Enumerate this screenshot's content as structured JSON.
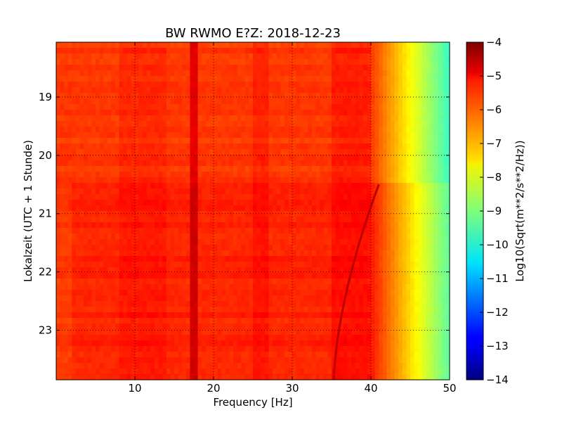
{
  "chart_data": {
    "type": "heatmap",
    "title": "BW RWMO E?Z: 2018-12-23",
    "xlabel": "Frequency [Hz]",
    "ylabel": "Lokalzeit (UTC + 1 Stunde)",
    "xlim": [
      0,
      50
    ],
    "ylim": [
      18.06,
      23.85
    ],
    "y_inverted": true,
    "x_ticks": [
      10,
      20,
      30,
      40,
      50
    ],
    "y_ticks": [
      19,
      20,
      21,
      22,
      23
    ],
    "grid": true,
    "colormap": "jet",
    "colorbar": {
      "label": "Log10(Sqrt(m**2/s**2/Hz))",
      "range": [
        -14,
        -4
      ],
      "ticks": [
        -4,
        -5,
        -6,
        -7,
        -8,
        -9,
        -10,
        -11,
        -12,
        -13,
        -14
      ]
    },
    "features": {
      "baseline_level": -5.8,
      "vertical_band_hz": [
        17.0,
        17.8
      ],
      "vertical_band_level": -5.0,
      "rolloff_start_hz": 40,
      "rolloff_end_hz": 50,
      "rolloff_end_level": -9.7,
      "transition_time": 20.5,
      "gliding_tone": {
        "start": {
          "freq_hz": 41.0,
          "time": 20.5
        },
        "end": {
          "freq_hz": 35.3,
          "time": 23.85
        }
      }
    }
  }
}
